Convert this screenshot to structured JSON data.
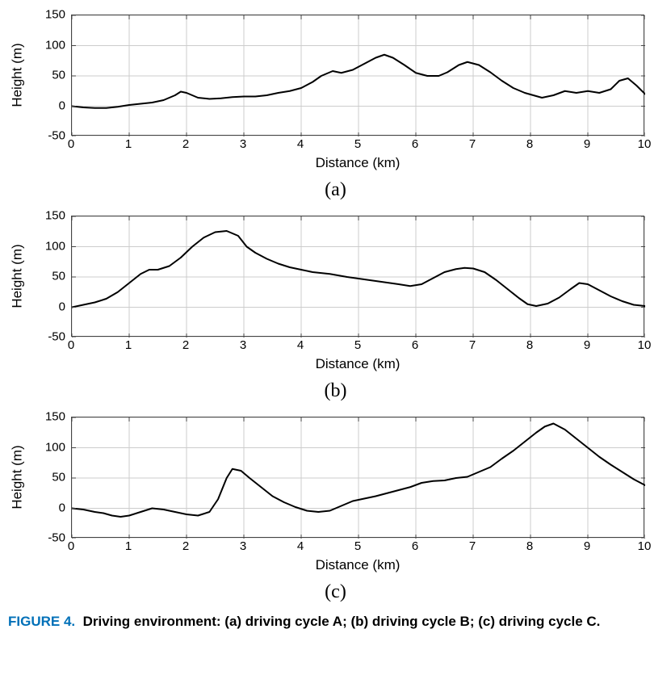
{
  "figure": {
    "background_color": "#ffffff",
    "line_color": "#000000",
    "line_width": 2,
    "grid_color": "#cccccc",
    "border_color": "#444444",
    "tick_fontsize": 15,
    "label_fontsize": 17,
    "subplot_letter_fontsize": 24,
    "layout": {
      "cols": 1,
      "rows": 3
    },
    "common_axes": {
      "xlabel": "Distance (km)",
      "ylabel": "Height (m)",
      "xlim": [
        0,
        10
      ],
      "ylim": [
        -50,
        150
      ],
      "xtick_step": 1,
      "ytick_step": 50,
      "xticks": [
        0,
        1,
        2,
        3,
        4,
        5,
        6,
        7,
        8,
        9,
        10
      ],
      "yticks": [
        -50,
        0,
        50,
        100,
        150
      ],
      "grid": true
    },
    "panels": [
      {
        "id": "a",
        "letter": "(a)",
        "type": "line",
        "series": {
          "x": [
            0,
            0.2,
            0.4,
            0.6,
            0.8,
            1.0,
            1.2,
            1.4,
            1.6,
            1.8,
            1.9,
            2.0,
            2.2,
            2.4,
            2.6,
            2.8,
            3.0,
            3.2,
            3.4,
            3.6,
            3.8,
            4.0,
            4.2,
            4.35,
            4.55,
            4.7,
            4.9,
            5.1,
            5.3,
            5.45,
            5.6,
            5.8,
            6.0,
            6.2,
            6.4,
            6.55,
            6.75,
            6.9,
            7.1,
            7.3,
            7.5,
            7.7,
            7.9,
            8.05,
            8.2,
            8.4,
            8.6,
            8.8,
            9.0,
            9.2,
            9.4,
            9.55,
            9.7,
            9.85,
            10.0
          ],
          "y": [
            0,
            -2,
            -3,
            -3,
            -1,
            2,
            4,
            6,
            10,
            18,
            24,
            22,
            14,
            12,
            13,
            15,
            16,
            16,
            18,
            22,
            25,
            30,
            40,
            50,
            58,
            55,
            60,
            70,
            80,
            85,
            80,
            68,
            55,
            50,
            50,
            56,
            68,
            73,
            68,
            56,
            42,
            30,
            22,
            18,
            14,
            18,
            25,
            22,
            25,
            22,
            28,
            42,
            46,
            34,
            20
          ]
        }
      },
      {
        "id": "b",
        "letter": "(b)",
        "type": "line",
        "series": {
          "x": [
            0,
            0.2,
            0.4,
            0.6,
            0.8,
            1.0,
            1.2,
            1.35,
            1.5,
            1.7,
            1.9,
            2.1,
            2.3,
            2.5,
            2.7,
            2.9,
            3.05,
            3.2,
            3.4,
            3.6,
            3.8,
            4.0,
            4.2,
            4.5,
            4.8,
            5.1,
            5.4,
            5.7,
            5.9,
            6.1,
            6.3,
            6.5,
            6.7,
            6.85,
            7.0,
            7.2,
            7.4,
            7.6,
            7.8,
            7.95,
            8.1,
            8.3,
            8.5,
            8.7,
            8.85,
            9.0,
            9.2,
            9.4,
            9.6,
            9.8,
            10.0
          ],
          "y": [
            0,
            4,
            8,
            14,
            25,
            40,
            55,
            62,
            62,
            68,
            82,
            100,
            115,
            124,
            126,
            118,
            100,
            90,
            80,
            72,
            66,
            62,
            58,
            55,
            50,
            46,
            42,
            38,
            35,
            38,
            48,
            58,
            63,
            65,
            64,
            58,
            45,
            30,
            15,
            5,
            2,
            6,
            16,
            30,
            40,
            38,
            28,
            18,
            10,
            4,
            2
          ]
        }
      },
      {
        "id": "c",
        "letter": "(c)",
        "type": "line",
        "series": {
          "x": [
            0,
            0.2,
            0.4,
            0.55,
            0.7,
            0.85,
            1.0,
            1.2,
            1.4,
            1.6,
            1.8,
            2.0,
            2.2,
            2.4,
            2.55,
            2.7,
            2.8,
            2.95,
            3.1,
            3.3,
            3.5,
            3.7,
            3.9,
            4.1,
            4.3,
            4.5,
            4.7,
            4.9,
            5.1,
            5.3,
            5.5,
            5.7,
            5.9,
            6.1,
            6.3,
            6.5,
            6.7,
            6.9,
            7.1,
            7.3,
            7.5,
            7.7,
            7.9,
            8.1,
            8.25,
            8.4,
            8.6,
            8.8,
            9.0,
            9.2,
            9.4,
            9.6,
            9.8,
            10.0
          ],
          "y": [
            0,
            -2,
            -6,
            -8,
            -12,
            -14,
            -12,
            -6,
            0,
            -2,
            -6,
            -10,
            -12,
            -6,
            15,
            50,
            65,
            62,
            50,
            35,
            20,
            10,
            2,
            -4,
            -6,
            -4,
            4,
            12,
            16,
            20,
            25,
            30,
            35,
            42,
            45,
            46,
            50,
            52,
            60,
            68,
            82,
            95,
            110,
            125,
            135,
            140,
            130,
            115,
            100,
            85,
            72,
            60,
            48,
            38
          ]
        }
      }
    ],
    "caption": {
      "label": "FIGURE 4.",
      "label_color": "#0070b8",
      "text": "Driving environment: (a) driving cycle A; (b) driving cycle B; (c) driving cycle C.",
      "text_color": "#000000",
      "font_weight": "bold"
    }
  }
}
